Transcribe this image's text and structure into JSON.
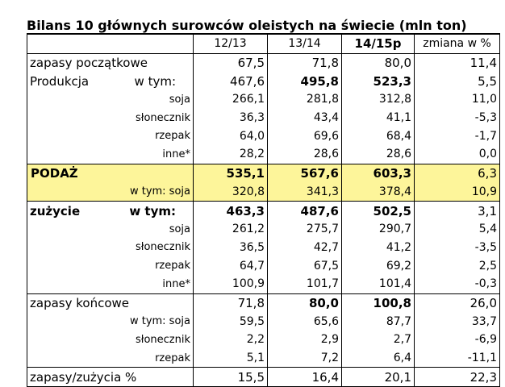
{
  "title": "Bilans 10 głównych surowców oleistych na świecie  (mln ton)",
  "columns": [
    "",
    "12/13",
    "13/14",
    "14/15p",
    "zmiana w %"
  ],
  "rows": [
    {
      "label": "zapasy początkowe",
      "sub": "",
      "values": [
        "67,5",
        "71,8",
        "80,0",
        "11,4"
      ],
      "style": "main"
    },
    {
      "label": "Produkcja",
      "sub": "w tym:",
      "values": [
        "467,6",
        "495,8",
        "523,3",
        "5,5"
      ],
      "style": "main",
      "bold_cols": [
        1,
        2
      ]
    },
    {
      "label": "",
      "sub": "soja",
      "values": [
        "266,1",
        "281,8",
        "312,8",
        "11,0"
      ],
      "style": "sub"
    },
    {
      "label": "",
      "sub": "słonecznik",
      "values": [
        "36,3",
        "43,4",
        "41,1",
        "-5,3"
      ],
      "style": "sub"
    },
    {
      "label": "",
      "sub": "rzepak",
      "values": [
        "64,0",
        "69,6",
        "68,4",
        "-1,7"
      ],
      "style": "sub"
    },
    {
      "label": "",
      "sub": "inne*",
      "values": [
        "28,2",
        "28,6",
        "28,6",
        "0,0"
      ],
      "style": "sub"
    },
    {
      "label": "PODAŻ",
      "sub": "",
      "values": [
        "535,1",
        "567,6",
        "603,3",
        "6,3"
      ],
      "style": "podaz"
    },
    {
      "label": "",
      "sub": "w tym: soja",
      "values": [
        "320,8",
        "341,3",
        "378,4",
        "10,9"
      ],
      "style": "podaz-sub"
    },
    {
      "label": "zużycie",
      "sub": "w tym:",
      "values": [
        "463,3",
        "487,6",
        "502,5",
        "3,1"
      ],
      "style": "main"
    },
    {
      "label": "",
      "sub": "soja",
      "values": [
        "261,2",
        "275,7",
        "290,7",
        "5,4"
      ],
      "style": "sub"
    },
    {
      "label": "",
      "sub": "słonecznik",
      "values": [
        "36,5",
        "42,7",
        "41,2",
        "-3,5"
      ],
      "style": "sub"
    },
    {
      "label": "",
      "sub": "rzepak",
      "values": [
        "64,7",
        "67,5",
        "69,2",
        "2,5"
      ],
      "style": "sub"
    },
    {
      "label": "",
      "sub": "inne*",
      "values": [
        "100,9",
        "101,7",
        "101,4",
        "-0,3"
      ],
      "style": "sub"
    },
    {
      "label": "zapasy końcowe",
      "sub": "",
      "values": [
        "71,8",
        "80,0",
        "100,8",
        "26,0"
      ],
      "style": "main"
    },
    {
      "label": "",
      "sub": "w tym: soja",
      "values": [
        "59,5",
        "65,6",
        "87,7",
        "33,7"
      ],
      "style": "sub"
    },
    {
      "label": "",
      "sub": "słonecznik",
      "values": [
        "2,2",
        "2,9",
        "2,7",
        "-6,9"
      ],
      "style": "sub"
    },
    {
      "label": "",
      "sub": "rzepak",
      "values": [
        "5,1",
        "7,2",
        "6,4",
        "-11,1"
      ],
      "style": "sub"
    },
    {
      "label": "zapasy/zużycia %",
      "sub": "",
      "values": [
        "15,5",
        "16,4",
        "20,1",
        "22,3"
      ],
      "style": "ratio"
    }
  ]
}
